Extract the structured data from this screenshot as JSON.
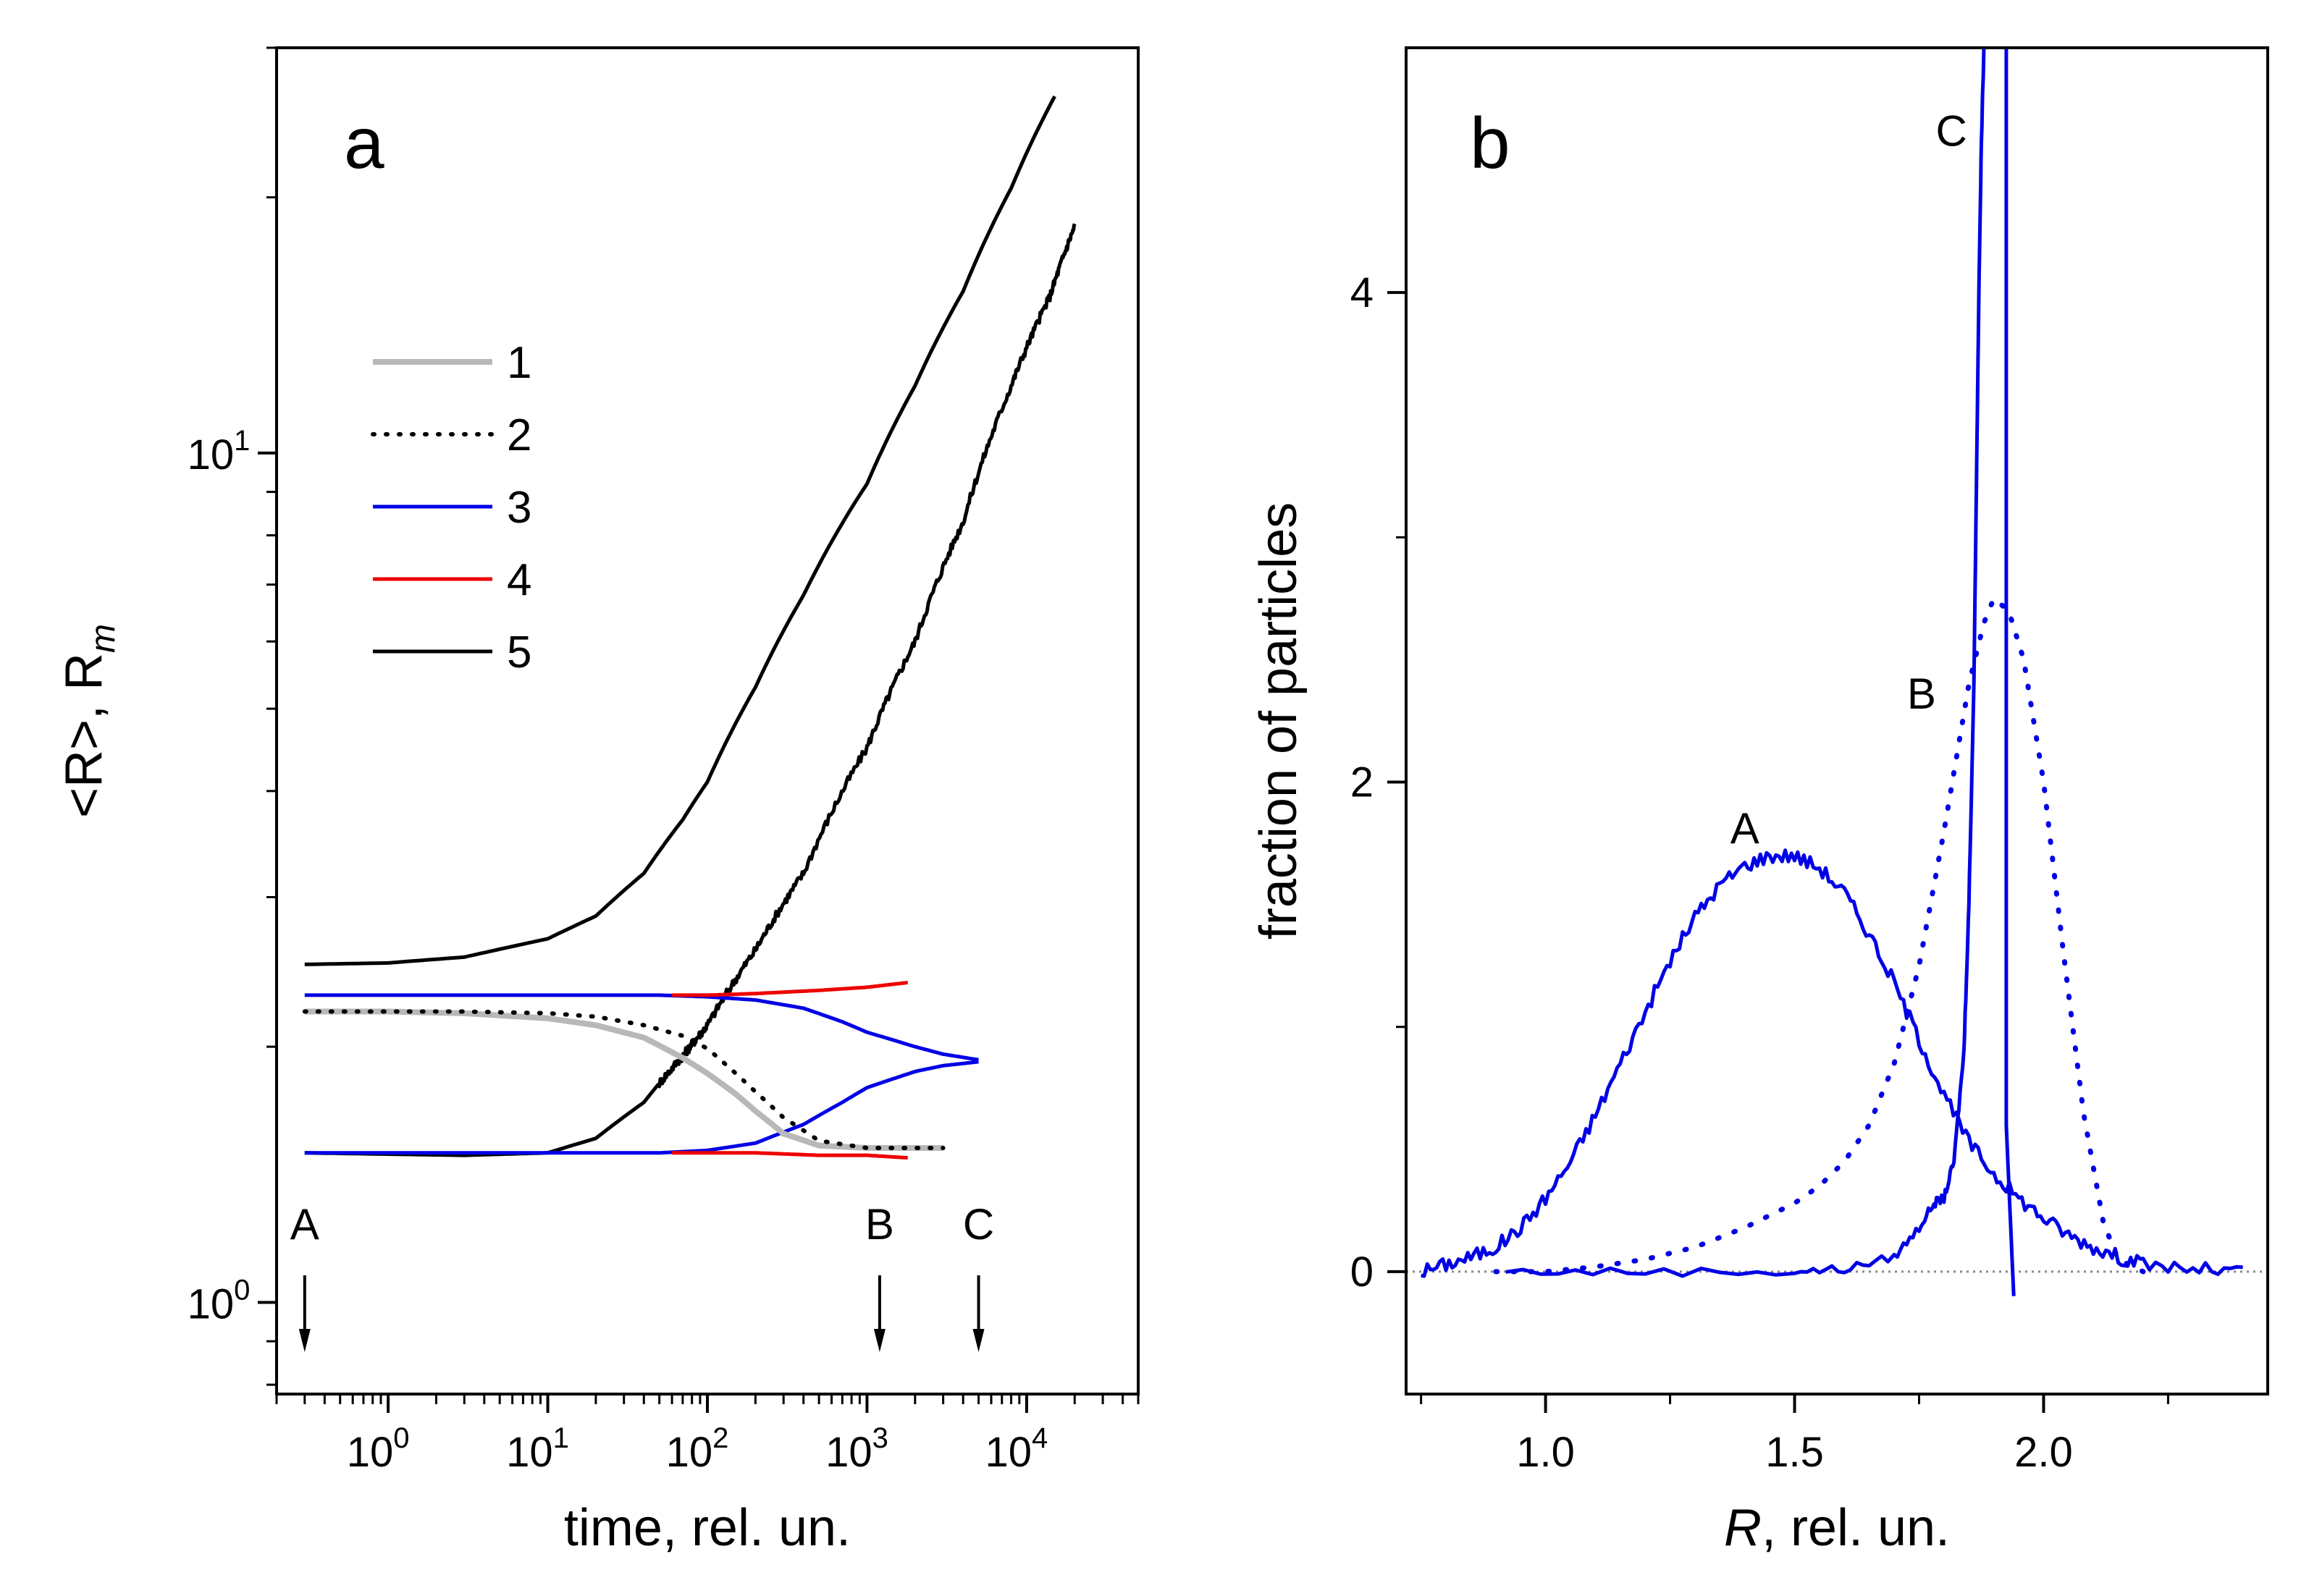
{
  "chart_data": [
    {
      "panel": "a",
      "type": "line",
      "panel_label": "a",
      "xlabel": "time, rel. un.",
      "ylabel_prefix": "<R>, R",
      "ylabel_sub": "m",
      "xscale": "log",
      "yscale": "log",
      "xlim": [
        0.2,
        50000
      ],
      "ylim": [
        0.78,
        30
      ],
      "xticks": [
        {
          "value": 1,
          "base": "10",
          "exp": "0"
        },
        {
          "value": 10,
          "base": "10",
          "exp": "1"
        },
        {
          "value": 100,
          "base": "10",
          "exp": "2"
        },
        {
          "value": 1000,
          "base": "10",
          "exp": "3"
        },
        {
          "value": 10000,
          "base": "10",
          "exp": "4"
        }
      ],
      "yticks": [
        {
          "value": 1,
          "base": "10",
          "exp": "0"
        },
        {
          "value": 10,
          "base": "10",
          "exp": "1"
        }
      ],
      "legend": [
        {
          "label": "1",
          "color": "#b8b8b8",
          "style": "solid"
        },
        {
          "label": "2",
          "color": "#000000",
          "style": "dotted"
        },
        {
          "label": "3",
          "color": "#0000e6",
          "style": "solid"
        },
        {
          "label": "4",
          "color": "#ee0000",
          "style": "solid"
        },
        {
          "label": "5",
          "color": "#000000",
          "style": "solid"
        }
      ],
      "series": [
        {
          "name": "5 upper",
          "color": "#000000",
          "style": "solid",
          "noise": 0,
          "x": [
            0.3,
            1,
            3,
            10,
            20,
            40,
            70,
            100,
            200,
            400,
            1000,
            2000,
            4000,
            8000,
            15000
          ],
          "y": [
            2.5,
            2.51,
            2.55,
            2.68,
            2.85,
            3.2,
            3.7,
            4.1,
            5.3,
            6.8,
            9.2,
            12,
            15.5,
            20.5,
            26.3
          ]
        },
        {
          "name": "5 lower",
          "color": "#000000",
          "style": "solid",
          "noise": 0.012,
          "x": [
            0.3,
            3,
            10,
            20,
            40,
            70,
            100,
            200,
            400,
            1000,
            2000,
            4000,
            8000,
            14000,
            20000
          ],
          "y": [
            1.5,
            1.49,
            1.5,
            1.56,
            1.72,
            1.95,
            2.12,
            2.6,
            3.2,
            4.5,
            6.0,
            8.3,
            12.0,
            15.3,
            18.5
          ]
        },
        {
          "name": "3 upper",
          "color": "#0000e6",
          "style": "solid",
          "noise": 0,
          "x": [
            0.3,
            10,
            50,
            100,
            200,
            400,
            700,
            1000,
            2000,
            3000,
            5000
          ],
          "y": [
            2.3,
            2.3,
            2.3,
            2.29,
            2.27,
            2.22,
            2.14,
            2.08,
            2.0,
            1.96,
            1.93
          ]
        },
        {
          "name": "3 lower",
          "color": "#0000e6",
          "style": "solid",
          "noise": 0,
          "x": [
            0.3,
            10,
            50,
            100,
            200,
            400,
            700,
            1000,
            2000,
            3000,
            5000
          ],
          "y": [
            1.5,
            1.5,
            1.5,
            1.51,
            1.54,
            1.62,
            1.72,
            1.79,
            1.87,
            1.9,
            1.92
          ]
        },
        {
          "name": "4 upper",
          "color": "#ee0000",
          "style": "solid",
          "noise": 0,
          "x": [
            60,
            100,
            200,
            500,
            1000,
            1800
          ],
          "y": [
            2.3,
            2.3,
            2.31,
            2.33,
            2.35,
            2.38
          ]
        },
        {
          "name": "4 lower",
          "color": "#ee0000",
          "style": "solid",
          "noise": 0,
          "x": [
            60,
            100,
            200,
            500,
            1000,
            1800
          ],
          "y": [
            1.5,
            1.5,
            1.5,
            1.49,
            1.49,
            1.48
          ]
        },
        {
          "name": "1",
          "color": "#b8b8b8",
          "style": "solid",
          "noise": 0,
          "x": [
            0.3,
            1,
            3,
            10,
            20,
            40,
            70,
            100,
            150,
            200,
            300,
            500,
            1000,
            3000
          ],
          "y": [
            2.2,
            2.2,
            2.19,
            2.16,
            2.12,
            2.05,
            1.94,
            1.86,
            1.76,
            1.68,
            1.58,
            1.53,
            1.52,
            1.52
          ]
        },
        {
          "name": "2",
          "color": "#000000",
          "style": "dotted",
          "noise": 0,
          "x": [
            0.3,
            1,
            3,
            10,
            20,
            40,
            70,
            100,
            200,
            300,
            500,
            1000,
            3000
          ],
          "y": [
            2.2,
            2.2,
            2.2,
            2.19,
            2.17,
            2.12,
            2.06,
            1.99,
            1.77,
            1.65,
            1.55,
            1.52,
            1.52
          ]
        }
      ],
      "markers": [
        {
          "label": "A",
          "x": 0.3
        },
        {
          "label": "B",
          "x": 1200
        },
        {
          "label": "C",
          "x": 5000
        }
      ]
    },
    {
      "panel": "b",
      "type": "line",
      "panel_label": "b",
      "xlabel_italic": "R",
      "xlabel_rest": ", rel. un.",
      "ylabel": "fraction of particles",
      "xlim": [
        0.72,
        2.45
      ],
      "ylim": [
        -0.5,
        5
      ],
      "xticks": [
        {
          "value": 1.0,
          "label": "1.0"
        },
        {
          "value": 1.5,
          "label": "1.5"
        },
        {
          "value": 2.0,
          "label": "2.0"
        }
      ],
      "xminor": [
        0.75,
        1.25,
        1.75,
        2.25
      ],
      "yticks": [
        {
          "value": 0,
          "label": "0"
        },
        {
          "value": 2,
          "label": "2"
        },
        {
          "value": 4,
          "label": "4"
        }
      ],
      "yminor": [
        1,
        3
      ],
      "zero_line": true,
      "series": [
        {
          "name": "A",
          "color": "#0000e6",
          "style": "solid",
          "noise": 0.01,
          "x": [
            0.75,
            0.8,
            0.85,
            0.9,
            0.95,
            1.0,
            1.05,
            1.1,
            1.15,
            1.2,
            1.25,
            1.3,
            1.35,
            1.4,
            1.45,
            1.5,
            1.55,
            1.6,
            1.65,
            1.7,
            1.75,
            1.8,
            1.85,
            1.9,
            1.95,
            2.0,
            2.05,
            2.1,
            2.15,
            2.2,
            2.3,
            2.4
          ],
          "y": [
            0.0,
            0.03,
            0.06,
            0.1,
            0.18,
            0.3,
            0.45,
            0.64,
            0.85,
            1.06,
            1.27,
            1.45,
            1.58,
            1.66,
            1.7,
            1.7,
            1.65,
            1.55,
            1.38,
            1.18,
            0.95,
            0.72,
            0.53,
            0.4,
            0.3,
            0.22,
            0.15,
            0.1,
            0.06,
            0.03,
            0.01,
            0.0
          ]
        },
        {
          "name": "B",
          "color": "#0000e6",
          "style": "dotted",
          "noise": 0,
          "x": [
            0.9,
            1.0,
            1.1,
            1.2,
            1.3,
            1.4,
            1.5,
            1.55,
            1.6,
            1.65,
            1.7,
            1.75,
            1.8,
            1.85,
            1.88,
            1.9,
            1.93,
            1.96,
            2.0,
            2.04,
            2.08,
            2.12,
            2.15,
            2.2
          ],
          "y": [
            0.0,
            0.0,
            0.02,
            0.05,
            0.1,
            0.18,
            0.28,
            0.35,
            0.45,
            0.6,
            0.85,
            1.25,
            1.8,
            2.4,
            2.65,
            2.75,
            2.7,
            2.5,
            2.0,
            1.3,
            0.65,
            0.2,
            0.05,
            0.0
          ]
        },
        {
          "name": "C",
          "color": "#0000e6",
          "style": "solid",
          "noise": 0.006,
          "x": [
            0.92,
            1.2,
            1.5,
            1.6,
            1.7,
            1.75,
            1.78,
            1.8,
            1.82,
            1.84,
            1.85,
            1.86,
            1.865,
            1.87,
            1.875,
            1.88
          ],
          "y": [
            0.0,
            0.0,
            0.0,
            0.01,
            0.06,
            0.18,
            0.28,
            0.3,
            0.45,
            0.9,
            1.5,
            2.4,
            3.2,
            4.0,
            4.6,
            5.0
          ]
        },
        {
          "name": "C right edge",
          "color": "#0000e6",
          "style": "solid",
          "noise": 0,
          "x": [
            1.925,
            1.925,
            1.94
          ],
          "y": [
            5.0,
            0.6,
            -0.1
          ]
        }
      ],
      "annotations": [
        {
          "label": "A",
          "x": 1.4,
          "y": 1.75
        },
        {
          "label": "B",
          "x": 1.755,
          "y": 2.3
        },
        {
          "label": "C",
          "x": 1.815,
          "y": 4.6
        }
      ]
    }
  ]
}
